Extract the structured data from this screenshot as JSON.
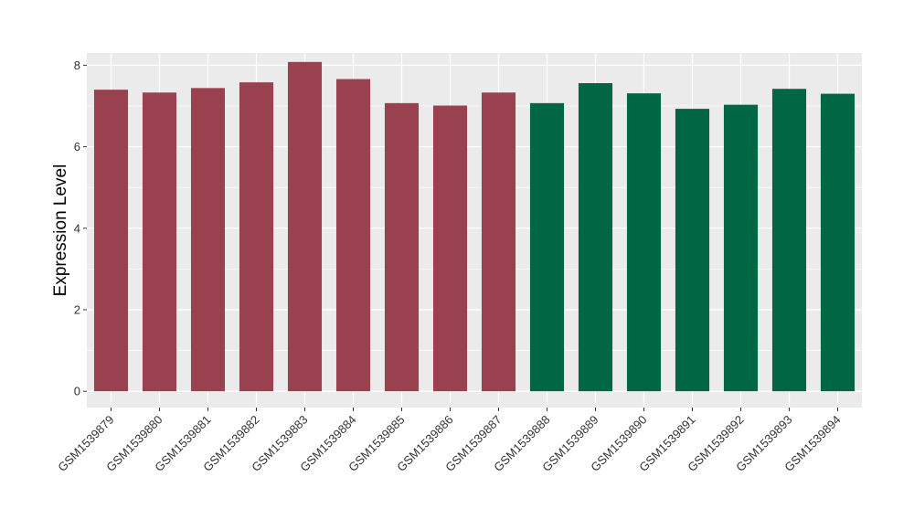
{
  "chart_data": {
    "type": "bar",
    "title": "",
    "xlabel": "",
    "ylabel": "Expression Level",
    "ylim": [
      -0.4,
      8.3
    ],
    "yticks": [
      0,
      2,
      4,
      6,
      8
    ],
    "grid": true,
    "legend": "none",
    "panel_background": "#ebebeb",
    "gridline_color": "#ffffff",
    "categories": [
      "GSM1539879",
      "GSM1539880",
      "GSM1539881",
      "GSM1539882",
      "GSM1539883",
      "GSM1539884",
      "GSM1539885",
      "GSM1539886",
      "GSM1539887",
      "GSM1539888",
      "GSM1539889",
      "GSM1539890",
      "GSM1539891",
      "GSM1539892",
      "GSM1539893",
      "GSM1539894"
    ],
    "values": [
      7.4,
      7.33,
      7.44,
      7.58,
      8.08,
      7.66,
      7.07,
      7.01,
      7.33,
      7.07,
      7.56,
      7.31,
      6.93,
      7.03,
      7.42,
      7.3
    ],
    "bar_colors": [
      "#9a4150",
      "#9a4150",
      "#9a4150",
      "#9a4150",
      "#9a4150",
      "#9a4150",
      "#9a4150",
      "#9a4150",
      "#9a4150",
      "#006644",
      "#006644",
      "#006644",
      "#006644",
      "#006644",
      "#006644",
      "#006644"
    ]
  }
}
